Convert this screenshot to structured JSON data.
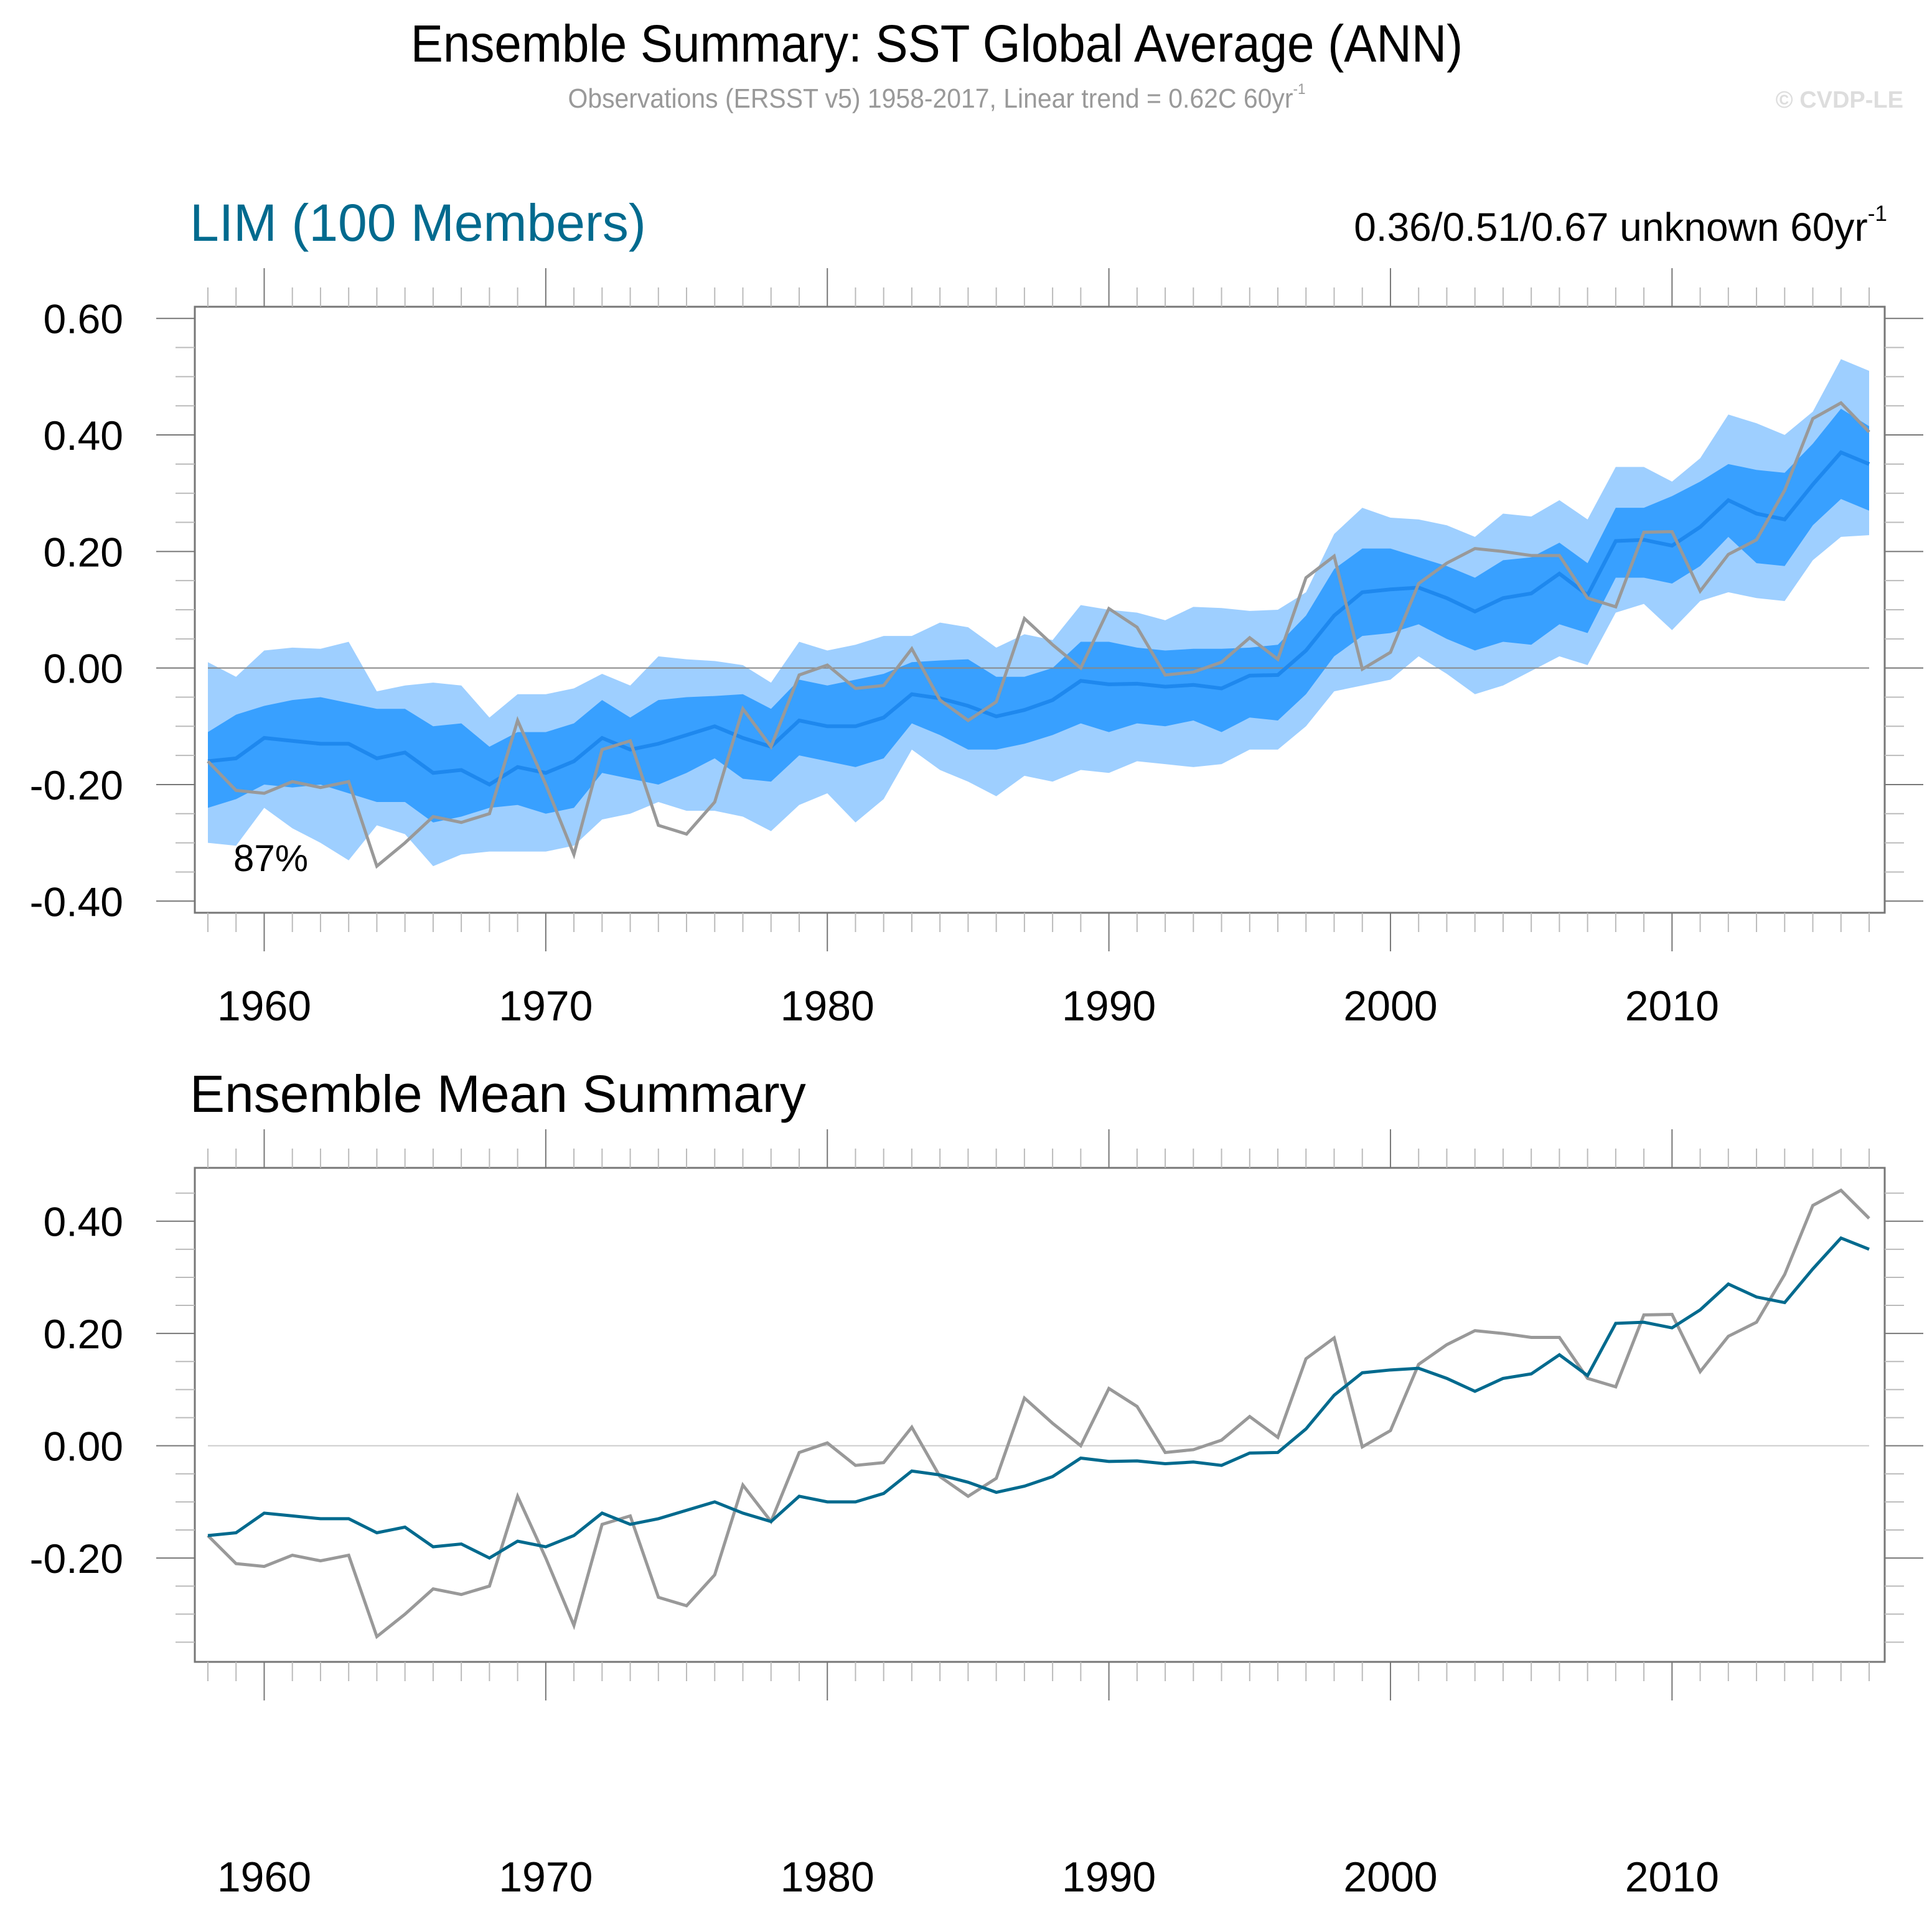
{
  "header": {
    "title": "Ensemble Summary: SST Global Average (ANN)",
    "subtitle_main": "Observations (ERSST v5) 1958-2017, Linear trend = 0.62C 60yr",
    "subtitle_sup": "-1",
    "credit": "© CVDP-LE"
  },
  "panel1": {
    "title": "LIM (100 Members)",
    "trend_main": "0.36/0.51/0.67 unknown 60yr",
    "trend_sup": "-1",
    "percent_label": "87%"
  },
  "panel2": {
    "title": "Ensemble Mean Summary"
  },
  "colors": {
    "outer_band": "#9ecfff",
    "inner_band": "#38a0ff",
    "member_median": "#1e88ee",
    "ensemble_mean": "#006a8e",
    "observations": "#999999",
    "zero_line": "#888888"
  },
  "chart_data": [
    {
      "type": "area",
      "title": "LIM (100 Members)",
      "xlabel": "",
      "ylabel": "",
      "xlim": [
        1958,
        2017
      ],
      "ylim": [
        -0.42,
        0.62
      ],
      "x_ticks": [
        1960,
        1970,
        1980,
        1990,
        2000,
        2010
      ],
      "y_ticks": [
        0.6,
        0.4,
        0.2,
        0.0,
        -0.2,
        -0.4
      ],
      "y_tick_labels": [
        "0.60",
        "0.40",
        "0.20",
        "0.00",
        "-0.20",
        "-0.40"
      ],
      "grid": false,
      "annotations": [
        "87%",
        "0.36/0.51/0.67 unknown 60yr-1"
      ],
      "x": [
        1958,
        1959,
        1960,
        1961,
        1962,
        1963,
        1964,
        1965,
        1966,
        1967,
        1968,
        1969,
        1970,
        1971,
        1972,
        1973,
        1974,
        1975,
        1976,
        1977,
        1978,
        1979,
        1980,
        1981,
        1982,
        1983,
        1984,
        1985,
        1986,
        1987,
        1988,
        1989,
        1990,
        1991,
        1992,
        1993,
        1994,
        1995,
        1996,
        1997,
        1998,
        1999,
        2000,
        2001,
        2002,
        2003,
        2004,
        2005,
        2006,
        2007,
        2008,
        2009,
        2010,
        2011,
        2012,
        2013,
        2014,
        2015,
        2016,
        2017
      ],
      "series": [
        {
          "name": "outer_upper",
          "values": [
            0.01,
            -0.015,
            0.03,
            0.035,
            0.033,
            0.045,
            -0.04,
            -0.03,
            -0.025,
            -0.03,
            -0.085,
            -0.045,
            -0.045,
            -0.035,
            -0.01,
            -0.03,
            0.02,
            0.015,
            0.012,
            0.005,
            -0.025,
            0.045,
            0.03,
            0.04,
            0.055,
            0.055,
            0.078,
            0.07,
            0.035,
            0.058,
            0.048,
            0.108,
            0.1,
            0.095,
            0.082,
            0.105,
            0.103,
            0.098,
            0.1,
            0.13,
            0.23,
            0.275,
            0.258,
            0.255,
            0.245,
            0.225,
            0.265,
            0.26,
            0.288,
            0.255,
            0.345,
            0.345,
            0.32,
            0.36,
            0.435,
            0.42,
            0.4,
            0.44,
            0.53,
            0.51
          ]
        },
        {
          "name": "inner_upper",
          "values": [
            -0.11,
            -0.08,
            -0.065,
            -0.055,
            -0.05,
            -0.06,
            -0.07,
            -0.07,
            -0.1,
            -0.095,
            -0.135,
            -0.11,
            -0.11,
            -0.095,
            -0.055,
            -0.085,
            -0.055,
            -0.05,
            -0.048,
            -0.045,
            -0.07,
            -0.02,
            -0.03,
            -0.02,
            -0.01,
            0.01,
            0.013,
            0.015,
            -0.015,
            -0.015,
            0.0,
            0.045,
            0.045,
            0.035,
            0.03,
            0.033,
            0.033,
            0.035,
            0.04,
            0.09,
            0.17,
            0.205,
            0.205,
            0.19,
            0.175,
            0.155,
            0.185,
            0.19,
            0.215,
            0.18,
            0.275,
            0.275,
            0.295,
            0.32,
            0.35,
            0.34,
            0.335,
            0.385,
            0.445,
            0.415
          ]
        },
        {
          "name": "inner_lower",
          "values": [
            -0.24,
            -0.225,
            -0.2,
            -0.205,
            -0.2,
            -0.215,
            -0.23,
            -0.23,
            -0.265,
            -0.255,
            -0.24,
            -0.235,
            -0.25,
            -0.24,
            -0.18,
            -0.19,
            -0.2,
            -0.18,
            -0.155,
            -0.19,
            -0.195,
            -0.15,
            -0.16,
            -0.17,
            -0.155,
            -0.095,
            -0.115,
            -0.14,
            -0.14,
            -0.13,
            -0.115,
            -0.095,
            -0.11,
            -0.095,
            -0.1,
            -0.09,
            -0.11,
            -0.085,
            -0.09,
            -0.045,
            0.02,
            0.055,
            0.06,
            0.075,
            0.05,
            0.03,
            0.045,
            0.04,
            0.075,
            0.06,
            0.155,
            0.155,
            0.145,
            0.175,
            0.225,
            0.18,
            0.175,
            0.245,
            0.29,
            0.27
          ]
        },
        {
          "name": "outer_lower",
          "values": [
            -0.3,
            -0.305,
            -0.24,
            -0.275,
            -0.3,
            -0.33,
            -0.27,
            -0.285,
            -0.34,
            -0.32,
            -0.315,
            -0.315,
            -0.315,
            -0.305,
            -0.26,
            -0.25,
            -0.23,
            -0.245,
            -0.245,
            -0.255,
            -0.28,
            -0.235,
            -0.215,
            -0.265,
            -0.225,
            -0.14,
            -0.175,
            -0.195,
            -0.22,
            -0.185,
            -0.195,
            -0.175,
            -0.18,
            -0.16,
            -0.165,
            -0.17,
            -0.165,
            -0.14,
            -0.14,
            -0.1,
            -0.04,
            -0.03,
            -0.02,
            0.02,
            -0.01,
            -0.045,
            -0.03,
            -0.005,
            0.02,
            0.005,
            0.095,
            0.11,
            0.065,
            0.115,
            0.13,
            0.12,
            0.115,
            0.185,
            0.225,
            0.228
          ]
        },
        {
          "name": "ensemble_median",
          "values": [
            -0.16,
            -0.155,
            -0.12,
            -0.125,
            -0.13,
            -0.13,
            -0.155,
            -0.145,
            -0.18,
            -0.175,
            -0.2,
            -0.17,
            -0.18,
            -0.16,
            -0.12,
            -0.14,
            -0.13,
            -0.115,
            -0.1,
            -0.12,
            -0.135,
            -0.09,
            -0.1,
            -0.1,
            -0.085,
            -0.045,
            -0.052,
            -0.065,
            -0.083,
            -0.072,
            -0.055,
            -0.022,
            -0.028,
            -0.027,
            -0.032,
            -0.029,
            -0.035,
            -0.013,
            -0.012,
            0.03,
            0.09,
            0.13,
            0.135,
            0.138,
            0.12,
            0.097,
            0.12,
            0.128,
            0.162,
            0.125,
            0.218,
            0.22,
            0.21,
            0.242,
            0.288,
            0.265,
            0.255,
            0.315,
            0.37,
            0.35
          ]
        },
        {
          "name": "observations",
          "values": [
            -0.16,
            -0.21,
            -0.215,
            -0.195,
            -0.205,
            -0.195,
            -0.34,
            -0.3,
            -0.255,
            -0.265,
            -0.25,
            -0.09,
            -0.2,
            -0.32,
            -0.14,
            -0.125,
            -0.27,
            -0.285,
            -0.23,
            -0.07,
            -0.135,
            -0.012,
            0.005,
            -0.035,
            -0.03,
            0.033,
            -0.055,
            -0.09,
            -0.058,
            0.085,
            0.04,
            0.0,
            0.102,
            0.07,
            -0.012,
            -0.007,
            0.01,
            0.052,
            0.015,
            0.155,
            0.192,
            -0.002,
            0.027,
            0.145,
            0.18,
            0.205,
            0.2,
            0.193,
            0.193,
            0.12,
            0.105,
            0.233,
            0.234,
            0.132,
            0.195,
            0.22,
            0.305,
            0.428,
            0.455,
            0.405
          ]
        }
      ]
    },
    {
      "type": "line",
      "title": "Ensemble Mean Summary",
      "xlabel": "",
      "ylabel": "",
      "xlim": [
        1958,
        2017
      ],
      "ylim": [
        -0.385,
        0.495
      ],
      "x_ticks": [
        1960,
        1970,
        1980,
        1990,
        2000,
        2010
      ],
      "y_ticks": [
        0.4,
        0.2,
        0.0,
        -0.2
      ],
      "y_tick_labels": [
        "0.40",
        "0.20",
        "0.00",
        "-0.20"
      ],
      "grid": false,
      "x": [
        1958,
        1959,
        1960,
        1961,
        1962,
        1963,
        1964,
        1965,
        1966,
        1967,
        1968,
        1969,
        1970,
        1971,
        1972,
        1973,
        1974,
        1975,
        1976,
        1977,
        1978,
        1979,
        1980,
        1981,
        1982,
        1983,
        1984,
        1985,
        1986,
        1987,
        1988,
        1989,
        1990,
        1991,
        1992,
        1993,
        1994,
        1995,
        1996,
        1997,
        1998,
        1999,
        2000,
        2001,
        2002,
        2003,
        2004,
        2005,
        2006,
        2007,
        2008,
        2009,
        2010,
        2011,
        2012,
        2013,
        2014,
        2015,
        2016,
        2017
      ],
      "series": [
        {
          "name": "ensemble_mean",
          "values": [
            -0.16,
            -0.155,
            -0.12,
            -0.125,
            -0.13,
            -0.13,
            -0.155,
            -0.145,
            -0.18,
            -0.175,
            -0.2,
            -0.17,
            -0.18,
            -0.16,
            -0.12,
            -0.14,
            -0.13,
            -0.115,
            -0.1,
            -0.12,
            -0.135,
            -0.09,
            -0.1,
            -0.1,
            -0.085,
            -0.045,
            -0.052,
            -0.065,
            -0.083,
            -0.072,
            -0.055,
            -0.022,
            -0.028,
            -0.027,
            -0.032,
            -0.029,
            -0.035,
            -0.013,
            -0.012,
            0.03,
            0.09,
            0.13,
            0.135,
            0.138,
            0.12,
            0.097,
            0.12,
            0.128,
            0.162,
            0.125,
            0.218,
            0.22,
            0.21,
            0.242,
            0.288,
            0.265,
            0.255,
            0.315,
            0.37,
            0.35
          ]
        },
        {
          "name": "observations",
          "values": [
            -0.16,
            -0.21,
            -0.215,
            -0.195,
            -0.205,
            -0.195,
            -0.34,
            -0.3,
            -0.255,
            -0.265,
            -0.25,
            -0.09,
            -0.2,
            -0.32,
            -0.14,
            -0.125,
            -0.27,
            -0.285,
            -0.23,
            -0.07,
            -0.135,
            -0.012,
            0.005,
            -0.035,
            -0.03,
            0.033,
            -0.055,
            -0.09,
            -0.058,
            0.085,
            0.04,
            0.0,
            0.102,
            0.07,
            -0.012,
            -0.007,
            0.01,
            0.052,
            0.015,
            0.155,
            0.192,
            -0.002,
            0.027,
            0.145,
            0.18,
            0.205,
            0.2,
            0.193,
            0.193,
            0.12,
            0.105,
            0.233,
            0.234,
            0.132,
            0.195,
            0.22,
            0.305,
            0.428,
            0.455,
            0.405
          ]
        }
      ]
    }
  ]
}
